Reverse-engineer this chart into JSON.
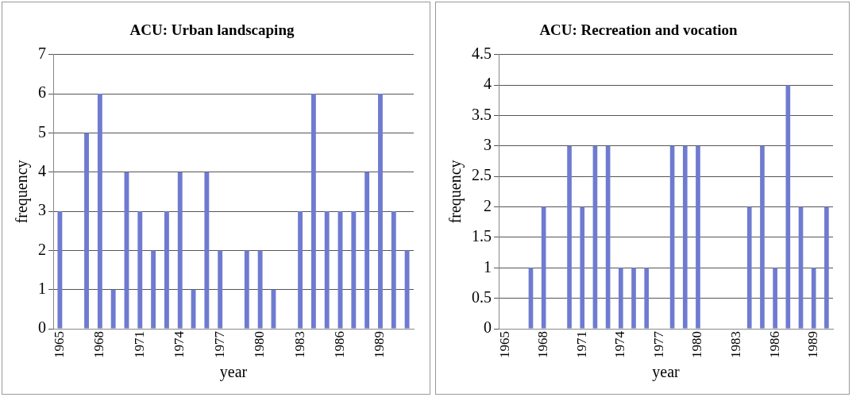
{
  "chart_data": [
    {
      "type": "bar",
      "title": "ACU: Urban landscaping",
      "xlabel": "year",
      "ylabel": "frequency",
      "categories": [
        "1965",
        null,
        null,
        "1968",
        null,
        null,
        "1971",
        null,
        null,
        "1974",
        null,
        null,
        "1977",
        null,
        null,
        "1980",
        null,
        null,
        "1983",
        null,
        null,
        "1986",
        null,
        null,
        "1989",
        null,
        null
      ],
      "series": [
        {
          "color": "#6f7bd0",
          "values": [
            3,
            null,
            5,
            6,
            1,
            4,
            3,
            2,
            3,
            4,
            1,
            4,
            2,
            null,
            2,
            2,
            1,
            null,
            3,
            6,
            3,
            3,
            3,
            4,
            6,
            3,
            2
          ]
        }
      ],
      "ylim": [
        0,
        7
      ],
      "yticks": [
        0,
        1,
        2,
        3,
        4,
        5,
        6,
        7
      ],
      "grid": "y",
      "legend": false
    },
    {
      "type": "bar",
      "title": "ACU: Recreation and vocation",
      "xlabel": "year",
      "ylabel": "frequency",
      "categories": [
        "1965",
        null,
        null,
        "1968",
        null,
        null,
        "1971",
        null,
        null,
        "1974",
        null,
        null,
        "1977",
        null,
        null,
        "1980",
        null,
        null,
        "1983",
        null,
        null,
        "1986",
        null,
        null,
        "1989",
        null
      ],
      "series": [
        {
          "color": "#6f7bd0",
          "values": [
            null,
            null,
            1,
            2,
            null,
            3,
            2,
            3,
            3,
            1,
            1,
            1,
            null,
            3,
            3,
            3,
            null,
            null,
            null,
            2,
            3,
            1,
            4,
            2,
            1,
            2
          ]
        }
      ],
      "ylim": [
        0,
        4.5
      ],
      "yticks": [
        0,
        0.5,
        1,
        1.5,
        2,
        2.5,
        3,
        3.5,
        4,
        4.5
      ],
      "grid": "y",
      "legend": false
    }
  ]
}
